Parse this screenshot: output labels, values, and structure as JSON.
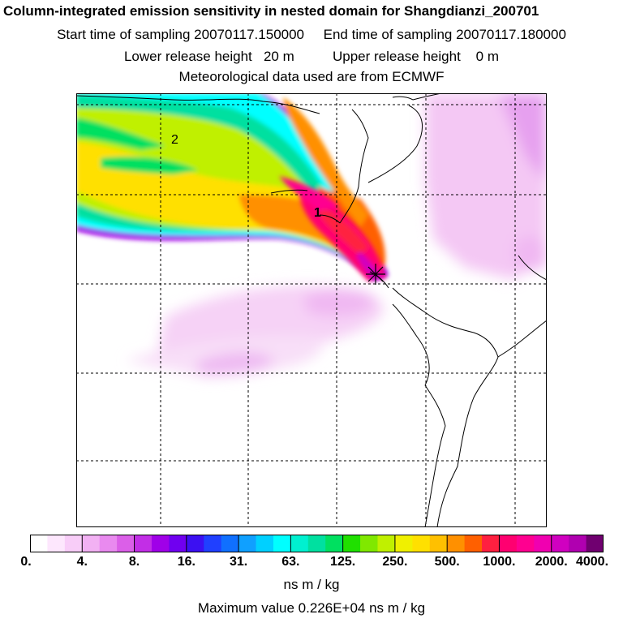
{
  "header": {
    "title": "Column-integrated emission sensitivity in nested domain for Shangdianzi_200701",
    "sampling_line": "Start time of sampling 20070117.150000     End time of sampling 20070117.180000",
    "release_line": "Lower release height   20 m          Upper release height    0 m",
    "met_line": "Meteorological data used are from ECMWF"
  },
  "map": {
    "labels": {
      "max1": "1",
      "max2": "2"
    },
    "release_marker": "star-marker-icon"
  },
  "colorbar": {
    "tick_labels": [
      "0.",
      "4.",
      "8.",
      "16.",
      "31.",
      "63.",
      "125.",
      "250.",
      "500.",
      "1000.",
      "2000.",
      "4000."
    ],
    "colors": [
      "#ffffff",
      "#fde7fd",
      "#f8cdf8",
      "#f2b1f3",
      "#e98aef",
      "#db5fe8",
      "#c22ee6",
      "#a000e8",
      "#7000f0",
      "#3c10f2",
      "#2040ff",
      "#1070ff",
      "#10a0ff",
      "#00d0ff",
      "#00ffff",
      "#00f0d0",
      "#00e0a0",
      "#00e060",
      "#20e000",
      "#80e800",
      "#c0f000",
      "#f0f000",
      "#ffe000",
      "#ffc000",
      "#ff9000",
      "#ff6000",
      "#ff2040",
      "#ff0070",
      "#ff0090",
      "#f000b0",
      "#d000c0",
      "#b000b0",
      "#700070"
    ],
    "units": "ns m / kg"
  },
  "footer": {
    "maximum": "Maximum value  0.226E+04 ns m / kg"
  }
}
